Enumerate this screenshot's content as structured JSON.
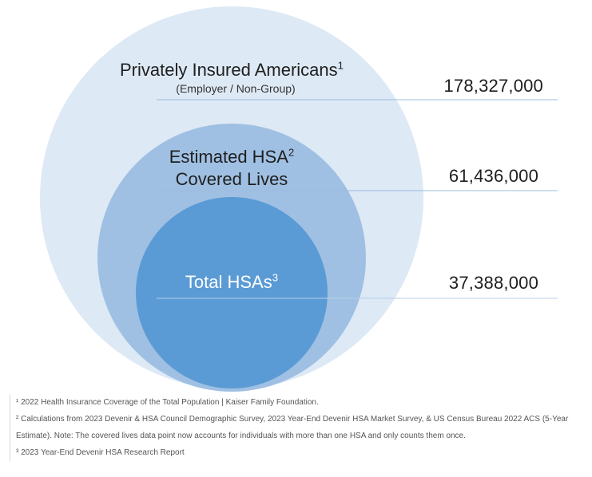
{
  "colors": {
    "outer_circle": "#dde9f5",
    "middle_circle": "#9fc0e3",
    "inner_circle": "#5b9bd5",
    "leader_line": "#9dbcdf",
    "inner_label": "#ffffff"
  },
  "rings": [
    {
      "title": "Privately Insured Americans",
      "marker": "1",
      "subtitle": "(Employer / Non-Group)",
      "value": "178,327,000"
    },
    {
      "title_line1": "Estimated HSA",
      "marker": "2",
      "title_line2": "Covered Lives",
      "value": "61,436,000"
    },
    {
      "title": "Total HSAs",
      "marker": "3",
      "value": "37,388,000"
    }
  ],
  "footnotes": [
    "¹ 2022 Health Insurance Coverage of the Total Population | Kaiser Family Foundation.",
    "² Calculations from 2023 Devenir & HSA Council Demographic Survey, 2023 Year-End Devenir HSA Market Survey, & US Census Bureau 2022 ACS (5-Year",
    "Estimate). Note: The covered lives data point now accounts for individuals with more than one HSA and only counts them once.",
    "³ 2023 Year-End Devenir HSA Research Report"
  ]
}
